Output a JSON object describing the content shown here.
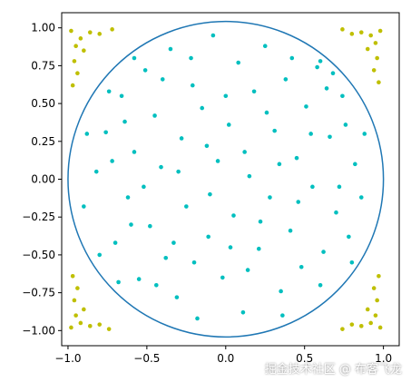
{
  "chart_data": {
    "type": "scatter",
    "title": "",
    "xlabel": "",
    "ylabel": "",
    "xlim": [
      -1.04,
      1.1
    ],
    "ylim": [
      -1.1,
      1.1
    ],
    "xticks": [
      -1.0,
      -0.5,
      0.0,
      0.5,
      1.0
    ],
    "xtick_labels": [
      "−1.0",
      "−0.5",
      "0.0",
      "0.5",
      "1.0"
    ],
    "yticks": [
      1.0,
      0.75,
      0.5,
      0.25,
      0.0,
      -0.25,
      -0.5,
      -0.75,
      -1.0
    ],
    "ytick_labels": [
      "1.00",
      "0.75",
      "0.50",
      "0.25",
      "0.00",
      "−0.25",
      "−0.50",
      "−0.75",
      "−1.00"
    ],
    "grid": false,
    "circle": {
      "center": [
        0,
        0
      ],
      "radius": 1.0,
      "color": "#1f77b4"
    },
    "series": [
      {
        "color": "#00bfbf",
        "points": [
          [
            -0.82,
            0.05
          ],
          [
            -0.76,
            0.31
          ],
          [
            -0.7,
            -0.42
          ],
          [
            -0.66,
            0.55
          ],
          [
            -0.62,
            -0.12
          ],
          [
            -0.58,
            0.18
          ],
          [
            -0.55,
            -0.66
          ],
          [
            -0.51,
            0.72
          ],
          [
            -0.48,
            -0.31
          ],
          [
            -0.45,
            0.42
          ],
          [
            -0.41,
            0.08
          ],
          [
            -0.38,
            -0.52
          ],
          [
            -0.35,
            0.86
          ],
          [
            -0.31,
            -0.78
          ],
          [
            -0.28,
            0.27
          ],
          [
            -0.25,
            -0.18
          ],
          [
            -0.21,
            0.62
          ],
          [
            -0.18,
            -0.92
          ],
          [
            -0.15,
            0.47
          ],
          [
            -0.11,
            -0.38
          ],
          [
            -0.08,
            0.95
          ],
          [
            -0.05,
            0.12
          ],
          [
            -0.02,
            -0.65
          ],
          [
            0.02,
            0.36
          ],
          [
            0.05,
            -0.24
          ],
          [
            0.08,
            0.77
          ],
          [
            0.11,
            -0.88
          ],
          [
            0.15,
            0.02
          ],
          [
            0.18,
            0.58
          ],
          [
            0.21,
            -0.46
          ],
          [
            0.25,
            0.88
          ],
          [
            0.28,
            -0.12
          ],
          [
            0.31,
            0.32
          ],
          [
            0.35,
            -0.74
          ],
          [
            0.38,
            0.66
          ],
          [
            0.41,
            -0.34
          ],
          [
            0.45,
            0.14
          ],
          [
            0.48,
            -0.58
          ],
          [
            0.51,
            0.48
          ],
          [
            0.55,
            -0.05
          ],
          [
            0.58,
            0.74
          ],
          [
            0.62,
            -0.48
          ],
          [
            0.66,
            0.28
          ],
          [
            0.7,
            -0.22
          ],
          [
            0.74,
            0.55
          ],
          [
            0.78,
            -0.38
          ],
          [
            0.82,
            0.1
          ],
          [
            0.86,
            -0.12
          ],
          [
            0.88,
            0.3
          ],
          [
            -0.9,
            -0.18
          ],
          [
            -0.88,
            0.3
          ],
          [
            -0.8,
            -0.5
          ],
          [
            -0.72,
            0.12
          ],
          [
            -0.64,
            0.38
          ],
          [
            -0.6,
            -0.3
          ],
          [
            -0.52,
            -0.05
          ],
          [
            -0.44,
            -0.7
          ],
          [
            -0.4,
            0.66
          ],
          [
            -0.33,
            -0.42
          ],
          [
            -0.3,
            0.05
          ],
          [
            -0.22,
            0.8
          ],
          [
            -0.2,
            -0.55
          ],
          [
            -0.12,
            0.22
          ],
          [
            -0.1,
            -0.1
          ],
          [
            0.0,
            0.55
          ],
          [
            0.03,
            -0.45
          ],
          [
            0.12,
            0.18
          ],
          [
            0.14,
            -0.6
          ],
          [
            0.22,
            -0.28
          ],
          [
            0.26,
            0.44
          ],
          [
            0.34,
            0.1
          ],
          [
            0.36,
            -0.9
          ],
          [
            0.42,
            0.8
          ],
          [
            0.46,
            -0.15
          ],
          [
            0.54,
            0.3
          ],
          [
            0.6,
            -0.7
          ],
          [
            0.64,
            0.6
          ],
          [
            0.72,
            -0.05
          ],
          [
            0.76,
            0.36
          ],
          [
            0.8,
            -0.55
          ],
          [
            0.68,
            0.7
          ],
          [
            -0.68,
            -0.68
          ],
          [
            -0.74,
            0.58
          ],
          [
            0.6,
            0.78
          ],
          [
            -0.58,
            0.8
          ]
        ]
      },
      {
        "color": "#bfbf00",
        "points": [
          [
            -0.98,
            0.98
          ],
          [
            -0.95,
            0.88
          ],
          [
            -0.92,
            0.93
          ],
          [
            -0.96,
            0.78
          ],
          [
            -0.9,
            0.85
          ],
          [
            -0.86,
            0.97
          ],
          [
            -0.94,
            0.7
          ],
          [
            -0.8,
            0.96
          ],
          [
            -0.97,
            0.62
          ],
          [
            -0.72,
            0.99
          ],
          [
            0.98,
            0.98
          ],
          [
            0.95,
            0.9
          ],
          [
            0.92,
            0.95
          ],
          [
            0.96,
            0.8
          ],
          [
            0.9,
            0.86
          ],
          [
            0.86,
            0.97
          ],
          [
            0.94,
            0.72
          ],
          [
            0.8,
            0.96
          ],
          [
            0.97,
            0.64
          ],
          [
            0.74,
            0.99
          ],
          [
            -0.98,
            -0.98
          ],
          [
            -0.95,
            -0.9
          ],
          [
            -0.92,
            -0.95
          ],
          [
            -0.96,
            -0.8
          ],
          [
            -0.9,
            -0.86
          ],
          [
            -0.86,
            -0.97
          ],
          [
            -0.94,
            -0.72
          ],
          [
            -0.8,
            -0.96
          ],
          [
            -0.97,
            -0.64
          ],
          [
            -0.74,
            -0.99
          ],
          [
            0.98,
            -0.98
          ],
          [
            0.95,
            -0.9
          ],
          [
            0.92,
            -0.95
          ],
          [
            0.96,
            -0.8
          ],
          [
            0.9,
            -0.86
          ],
          [
            0.86,
            -0.97
          ],
          [
            0.94,
            -0.72
          ],
          [
            0.8,
            -0.96
          ],
          [
            0.97,
            -0.64
          ],
          [
            0.74,
            -0.99
          ]
        ]
      }
    ]
  },
  "watermark": "掘金技术社区 @ 布客飞龙"
}
